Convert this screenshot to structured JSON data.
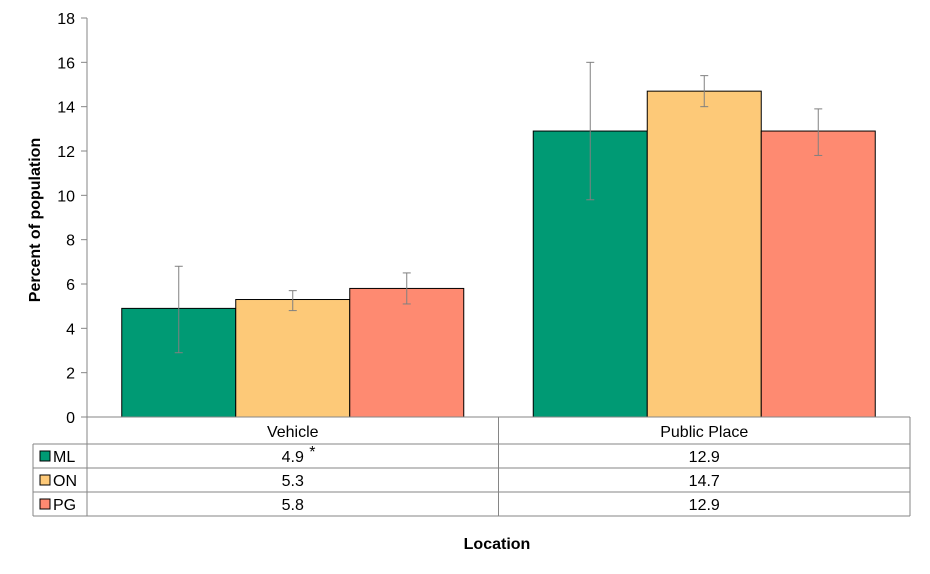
{
  "chart_data": {
    "type": "bar",
    "title": "",
    "xlabel": "Location",
    "ylabel": "Percent of population",
    "ylim": [
      0,
      18
    ],
    "yticks": [
      0,
      2,
      4,
      6,
      8,
      10,
      12,
      14,
      16,
      18
    ],
    "categories": [
      "Vehicle",
      "Public Place"
    ],
    "series": [
      {
        "name": "ML",
        "color": "#009a74",
        "values": [
          4.9,
          12.9
        ],
        "error_low": [
          2.9,
          9.8
        ],
        "error_high": [
          6.8,
          16.0
        ],
        "table_labels": [
          "4.9",
          "12.9"
        ],
        "table_marks": [
          "*",
          ""
        ]
      },
      {
        "name": "ON",
        "color": "#fdc978",
        "values": [
          5.3,
          14.7
        ],
        "error_low": [
          4.8,
          14.0
        ],
        "error_high": [
          5.7,
          15.4
        ],
        "table_labels": [
          "5.3",
          "14.7"
        ],
        "table_marks": [
          "",
          ""
        ]
      },
      {
        "name": "PG",
        "color": "#fe8a71",
        "values": [
          5.8,
          12.9
        ],
        "error_low": [
          5.1,
          11.8
        ],
        "error_high": [
          6.5,
          13.9
        ],
        "table_labels": [
          "5.8",
          "12.9"
        ],
        "table_marks": [
          "",
          ""
        ]
      }
    ],
    "grid": false,
    "legend": "data-table"
  }
}
